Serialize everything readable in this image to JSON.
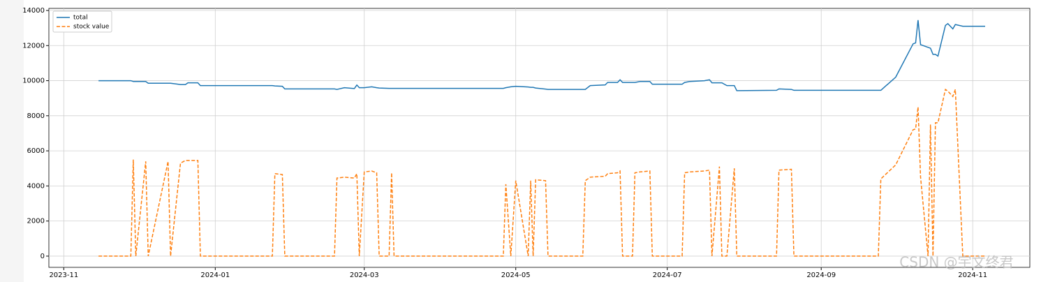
{
  "chart_data": {
    "type": "line",
    "x": [
      "2023-11-15",
      "2023-11-28",
      "2023-11-29",
      "2023-11-30",
      "2023-12-04",
      "2023-12-05",
      "2023-12-13",
      "2023-12-14",
      "2023-12-18",
      "2023-12-20",
      "2023-12-21",
      "2023-12-25",
      "2023-12-26",
      "2024-01-24",
      "2024-01-25",
      "2024-01-28",
      "2024-01-29",
      "2024-02-18",
      "2024-02-19",
      "2024-02-22",
      "2024-02-26",
      "2024-02-27",
      "2024-02-28",
      "2024-03-01",
      "2024-03-04",
      "2024-03-06",
      "2024-03-07",
      "2024-03-11",
      "2024-03-12",
      "2024-03-13",
      "2024-04-26",
      "2024-04-27",
      "2024-04-29",
      "2024-05-01",
      "2024-05-06",
      "2024-05-07",
      "2024-05-08",
      "2024-05-09",
      "2024-05-13",
      "2024-05-14",
      "2024-05-28",
      "2024-05-29",
      "2024-05-31",
      "2024-06-06",
      "2024-06-07",
      "2024-06-11",
      "2024-06-12",
      "2024-06-13",
      "2024-06-17",
      "2024-06-18",
      "2024-06-20",
      "2024-06-24",
      "2024-06-25",
      "2024-07-07",
      "2024-07-08",
      "2024-07-10",
      "2024-07-16",
      "2024-07-18",
      "2024-07-19",
      "2024-07-22",
      "2024-07-23",
      "2024-07-25",
      "2024-07-28",
      "2024-07-29",
      "2024-08-14",
      "2024-08-15",
      "2024-08-20",
      "2024-08-21",
      "2024-09-24",
      "2024-09-25",
      "2024-10-01",
      "2024-10-08",
      "2024-10-09",
      "2024-10-10",
      "2024-10-11",
      "2024-10-14",
      "2024-10-15",
      "2024-10-16",
      "2024-10-17",
      "2024-10-18",
      "2024-10-21",
      "2024-10-22",
      "2024-10-24",
      "2024-10-25",
      "2024-10-28",
      "2024-11-06"
    ],
    "series": [
      {
        "name": "total",
        "color": "#1f77b4",
        "dashed": false,
        "values": [
          10000,
          10000,
          9950,
          9950,
          9950,
          9850,
          9850,
          9850,
          9780,
          9780,
          9880,
          9880,
          9720,
          9720,
          9700,
          9680,
          9530,
          9530,
          9500,
          9600,
          9550,
          9750,
          9600,
          9600,
          9650,
          9600,
          9580,
          9560,
          9560,
          9560,
          9560,
          9600,
          9650,
          9680,
          9640,
          9620,
          9620,
          9580,
          9520,
          9500,
          9500,
          9500,
          9720,
          9760,
          9900,
          9900,
          10050,
          9900,
          9900,
          9900,
          9950,
          9950,
          9800,
          9800,
          9900,
          9950,
          10000,
          10050,
          9880,
          9880,
          9880,
          9720,
          9720,
          9430,
          9450,
          9530,
          9500,
          9450,
          9450,
          9450,
          10200,
          12100,
          12150,
          13450,
          12050,
          11900,
          11850,
          11500,
          11500,
          11400,
          13150,
          13250,
          12950,
          13200,
          13100,
          13100
        ]
      },
      {
        "name": "stock value",
        "color": "#ff7f0e",
        "dashed": true,
        "values": [
          0,
          0,
          5500,
          0,
          5400,
          0,
          5400,
          0,
          5300,
          5450,
          5450,
          5450,
          0,
          0,
          4700,
          4650,
          0,
          0,
          4450,
          4500,
          4450,
          4700,
          0,
          4800,
          4850,
          4750,
          0,
          0,
          4750,
          0,
          0,
          4100,
          0,
          4300,
          0,
          4300,
          0,
          4350,
          4300,
          0,
          0,
          4300,
          4500,
          4550,
          4700,
          4750,
          4850,
          0,
          0,
          4750,
          4800,
          4850,
          0,
          0,
          4750,
          4800,
          4850,
          4900,
          0,
          5100,
          0,
          0,
          5000,
          0,
          0,
          4900,
          4950,
          0,
          0,
          4400,
          5200,
          7200,
          7250,
          8500,
          4500,
          0,
          7500,
          0,
          7600,
          7600,
          9500,
          9400,
          9100,
          9500,
          0,
          0
        ]
      }
    ],
    "xlim": [
      "2023-10-26",
      "2024-11-24"
    ],
    "xticks": [
      "2023-11",
      "2024-01",
      "2024-03",
      "2024-05",
      "2024-07",
      "2024-09",
      "2024-11"
    ],
    "ylim": [
      -640,
      14120
    ],
    "yticks": [
      0,
      2000,
      4000,
      6000,
      8000,
      10000,
      12000,
      14000
    ],
    "grid": true,
    "legend": "upper-left",
    "watermark": "CSDN @宇文终君"
  }
}
